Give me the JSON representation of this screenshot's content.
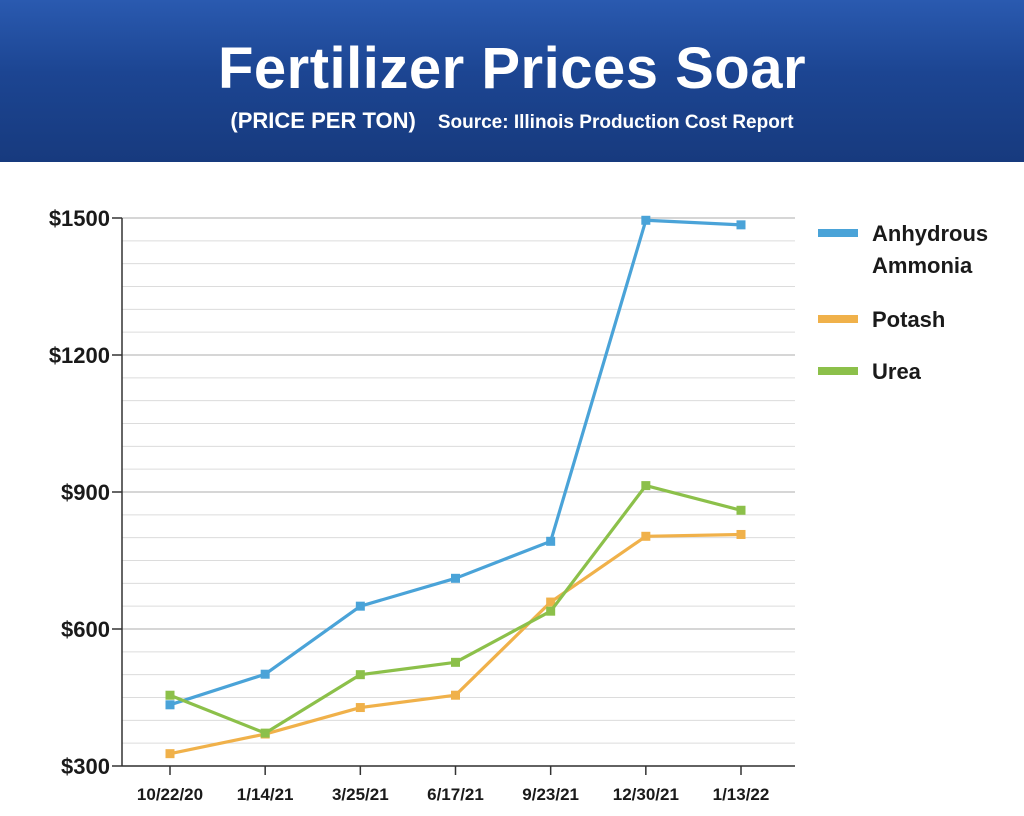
{
  "header": {
    "title": "Fertilizer Prices Soar",
    "unit_label": "(PRICE PER TON)",
    "source": "Source: Illinois Production Cost Report"
  },
  "chart_data": {
    "type": "line",
    "title": "Fertilizer Prices Soar",
    "subtitle": "(PRICE PER TON)",
    "xlabel": "",
    "ylabel": "",
    "categories": [
      "10/22/20",
      "1/14/21",
      "3/25/21",
      "6/17/21",
      "9/23/21",
      "12/30/21",
      "1/13/22"
    ],
    "ylim": [
      300,
      1500
    ],
    "yticks": [
      300,
      600,
      900,
      1200,
      1500
    ],
    "ytick_labels": [
      "$300",
      "$600",
      "$900",
      "$1200",
      "$1500"
    ],
    "grid": true,
    "legend_position": "right",
    "series": [
      {
        "name": "Anhydrous Ammonia",
        "name_lines": [
          "Anhydrous",
          "Ammonia"
        ],
        "color": "#4aa3d8",
        "values": [
          434,
          501,
          650,
          711,
          792,
          1495,
          1485
        ]
      },
      {
        "name": "Potash",
        "name_lines": [
          "Potash"
        ],
        "color": "#f0b14a",
        "values": [
          327,
          370,
          428,
          455,
          659,
          803,
          807
        ]
      },
      {
        "name": "Urea",
        "name_lines": [
          "Urea"
        ],
        "color": "#8cc04a",
        "values": [
          455,
          372,
          500,
          527,
          639,
          914,
          860
        ]
      }
    ]
  }
}
